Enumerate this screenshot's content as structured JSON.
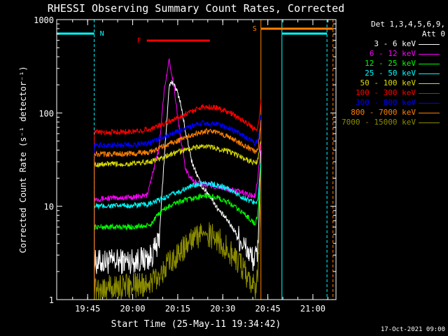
{
  "chart_data": {
    "type": "line",
    "title": "RHESSI Observing Summary Count Rates, Corrected",
    "xlabel": "Start Time (25-May-11 19:34:42)",
    "ylabel": "Corrected Count Rate (s⁻¹ detector⁻¹)",
    "yscale": "log",
    "ylim": [
      1,
      1000
    ],
    "xlim_minutes": [
      0,
      93
    ],
    "x_ticks": [
      {
        "label": "19:45",
        "min": 10.3
      },
      {
        "label": "20:00",
        "min": 25.3
      },
      {
        "label": "20:15",
        "min": 40.3
      },
      {
        "label": "20:30",
        "min": 55.3
      },
      {
        "label": "20:45",
        "min": 70.3
      },
      {
        "label": "21:00",
        "min": 85.3
      }
    ],
    "y_ticks": [
      {
        "label": "1",
        "value": 1
      },
      {
        "label": "10",
        "value": 10
      },
      {
        "label": "100",
        "value": 100
      },
      {
        "label": "1000",
        "value": 1000
      }
    ],
    "detectors": "Det 1,3,4,5,6,9,",
    "attenuator": "Att 0",
    "series": [
      {
        "name": "3 - 6 keV",
        "color": "#ffffff",
        "points": [
          [
            12.5,
            2.5
          ],
          [
            25,
            2.6
          ],
          [
            31,
            2.8
          ],
          [
            34,
            4
          ],
          [
            36,
            40
          ],
          [
            37.5,
            200
          ],
          [
            39,
            210
          ],
          [
            41,
            140
          ],
          [
            43,
            60
          ],
          [
            45,
            30
          ],
          [
            48,
            17
          ],
          [
            51,
            13
          ],
          [
            54,
            9
          ],
          [
            57,
            7
          ],
          [
            60,
            5
          ],
          [
            63,
            3.5
          ],
          [
            65,
            2.8
          ],
          [
            66,
            2.6
          ],
          [
            67,
            3.5
          ],
          [
            68,
            40
          ]
        ]
      },
      {
        "name": "6 - 12 keV",
        "color": "#ff00ff",
        "points": [
          [
            12.5,
            12
          ],
          [
            25,
            12.5
          ],
          [
            30,
            13
          ],
          [
            34,
            40
          ],
          [
            36,
            200
          ],
          [
            37.5,
            370
          ],
          [
            39,
            200
          ],
          [
            41,
            60
          ],
          [
            43,
            24
          ],
          [
            46,
            18
          ],
          [
            50,
            17
          ],
          [
            54,
            16
          ],
          [
            58,
            15
          ],
          [
            62,
            14
          ],
          [
            65,
            13
          ],
          [
            66,
            13
          ],
          [
            67,
            20
          ],
          [
            68,
            50
          ]
        ]
      },
      {
        "name": "12 - 25 keV",
        "color": "#00ff00",
        "points": [
          [
            12.5,
            6
          ],
          [
            25,
            6
          ],
          [
            31,
            6.2
          ],
          [
            35,
            9
          ],
          [
            40,
            11
          ],
          [
            45,
            12
          ],
          [
            49,
            13
          ],
          [
            53,
            12.5
          ],
          [
            57,
            11
          ],
          [
            61,
            9
          ],
          [
            64,
            7.5
          ],
          [
            66,
            6.5
          ],
          [
            67,
            8
          ],
          [
            68,
            30
          ]
        ]
      },
      {
        "name": "25 - 50 keV",
        "color": "#00ffff",
        "points": [
          [
            12.5,
            10
          ],
          [
            25,
            10.2
          ],
          [
            31,
            10.5
          ],
          [
            35,
            12
          ],
          [
            40,
            14
          ],
          [
            45,
            16.5
          ],
          [
            49,
            18
          ],
          [
            53,
            17
          ],
          [
            57,
            15.5
          ],
          [
            61,
            13
          ],
          [
            64,
            11.5
          ],
          [
            66,
            11
          ],
          [
            67,
            12
          ],
          [
            68,
            30
          ]
        ]
      },
      {
        "name": "50 - 100 keV",
        "color": "#dddd00",
        "points": [
          [
            12.5,
            28
          ],
          [
            25,
            28.5
          ],
          [
            31,
            30
          ],
          [
            35,
            33
          ],
          [
            40,
            38
          ],
          [
            45,
            42
          ],
          [
            49,
            44
          ],
          [
            53,
            42
          ],
          [
            57,
            39
          ],
          [
            61,
            34
          ],
          [
            64,
            31
          ],
          [
            66,
            29
          ],
          [
            67,
            31
          ],
          [
            68,
            50
          ]
        ]
      },
      {
        "name": "100 - 300 keV",
        "color": "#ff0000",
        "points": [
          [
            12.5,
            62
          ],
          [
            25,
            63
          ],
          [
            31,
            67
          ],
          [
            35,
            75
          ],
          [
            40,
            88
          ],
          [
            45,
            105
          ],
          [
            49,
            118
          ],
          [
            53,
            114
          ],
          [
            57,
            103
          ],
          [
            61,
            87
          ],
          [
            64,
            75
          ],
          [
            66,
            66
          ],
          [
            67,
            70
          ],
          [
            68,
            130
          ]
        ]
      },
      {
        "name": "300 - 800 keV",
        "color": "#0000ff",
        "points": [
          [
            12.5,
            45
          ],
          [
            25,
            45.5
          ],
          [
            31,
            48
          ],
          [
            35,
            54
          ],
          [
            40,
            63
          ],
          [
            45,
            72
          ],
          [
            49,
            78
          ],
          [
            53,
            76
          ],
          [
            57,
            70
          ],
          [
            61,
            60
          ],
          [
            64,
            52
          ],
          [
            66,
            47
          ],
          [
            67,
            50
          ],
          [
            68,
            90
          ]
        ]
      },
      {
        "name": "800 - 7000 keV",
        "color": "#ff8000",
        "points": [
          [
            12.5,
            36
          ],
          [
            25,
            36.5
          ],
          [
            31,
            38
          ],
          [
            35,
            43
          ],
          [
            40,
            50
          ],
          [
            45,
            58
          ],
          [
            49,
            64
          ],
          [
            53,
            62
          ],
          [
            57,
            56
          ],
          [
            61,
            48
          ],
          [
            64,
            42
          ],
          [
            66,
            38
          ],
          [
            67,
            40
          ],
          [
            68,
            80
          ]
        ]
      },
      {
        "name": "7000 - 15000 keV",
        "color": "#8b8b00",
        "points": [
          [
            12.5,
            1.3
          ],
          [
            25,
            1.4
          ],
          [
            31,
            1.5
          ],
          [
            35,
            2.0
          ],
          [
            40,
            3
          ],
          [
            45,
            4.3
          ],
          [
            49,
            5.2
          ],
          [
            53,
            4.6
          ],
          [
            57,
            3.5
          ],
          [
            61,
            2.4
          ],
          [
            64,
            1.6
          ],
          [
            66,
            1.3
          ],
          [
            67,
            2
          ],
          [
            68,
            15
          ]
        ]
      }
    ],
    "annotations": {
      "night": {
        "label": "N",
        "color": "#00ffff",
        "segments": [
          [
            0,
            12.5
          ],
          [
            75,
            90
          ]
        ]
      },
      "saa": {
        "label": "S",
        "color": "#ff8000",
        "segment": [
          68,
          92
        ]
      },
      "flare": {
        "label": "F",
        "color": "#ff0000",
        "segment": [
          30,
          51
        ]
      }
    }
  },
  "timestamp": "17-Oct-2021 09:00"
}
